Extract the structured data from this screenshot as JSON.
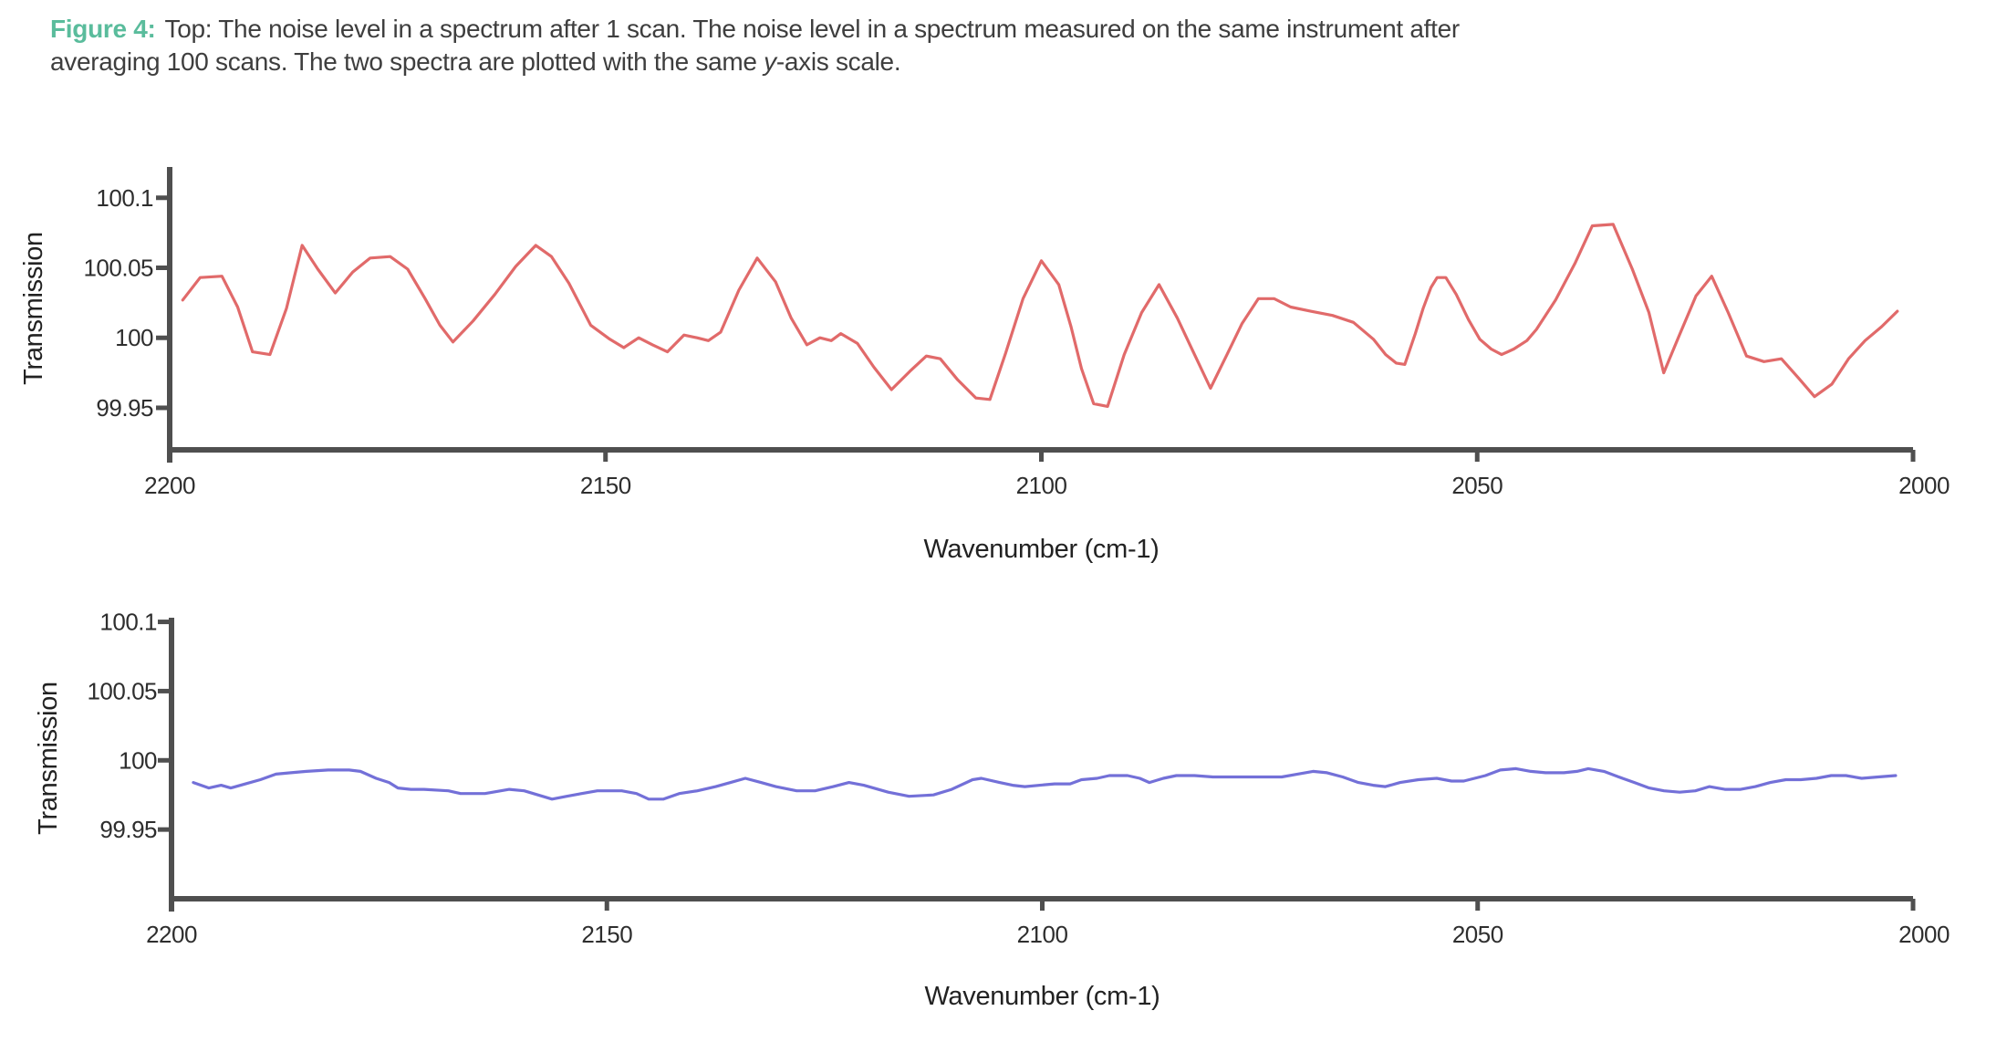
{
  "caption": {
    "label": "Figure 4:",
    "line1": "Top: The noise level in a spectrum after 1 scan. The noise level in a spectrum measured on the same instrument after",
    "line2_before_italic": "averaging 100 scans. The two spectra are plotted with the same ",
    "italic_word": "y",
    "line2_after_italic": "-axis scale."
  },
  "colors": {
    "accent_teal": "#5abc9c",
    "caption_text": "#3e3e3e",
    "axis": "#4f4f4f",
    "tick_text": "#2e2e2e",
    "line_1scan": "#e16a6a",
    "line_100scans": "#7370d8",
    "background": "#ffffff"
  },
  "chart_data": [
    {
      "type": "line",
      "position": "top",
      "title": "",
      "xlabel": "Wavenumber (cm-1)",
      "ylabel": "Transmission",
      "xlim": [
        2200,
        2000
      ],
      "ylim": [
        99.92,
        100.122
      ],
      "x_ticks": [
        2200,
        2150,
        2100,
        2050,
        2000
      ],
      "x_tick_labels": [
        "2200",
        "2150",
        "2100",
        "2050",
        "2000"
      ],
      "y_ticks": [
        99.95,
        100,
        100.05,
        100.1
      ],
      "y_tick_labels": [
        "99.95",
        "100",
        "100.05",
        "100.1"
      ],
      "grid": false,
      "legend": "none",
      "series": [
        {
          "name": "1 scan",
          "color": "#e16a6a",
          "points": [
            [
              2198.5,
              100.027
            ],
            [
              2196.5,
              100.043
            ],
            [
              2194.0,
              100.044
            ],
            [
              2192.2,
              100.022
            ],
            [
              2190.5,
              99.99
            ],
            [
              2188.5,
              99.988
            ],
            [
              2186.6,
              100.021
            ],
            [
              2184.8,
              100.066
            ],
            [
              2183.0,
              100.049
            ],
            [
              2181.0,
              100.032
            ],
            [
              2179.0,
              100.047
            ],
            [
              2177.0,
              100.057
            ],
            [
              2174.7,
              100.058
            ],
            [
              2172.7,
              100.049
            ],
            [
              2170.7,
              100.028
            ],
            [
              2169.0,
              100.009
            ],
            [
              2167.5,
              99.997
            ],
            [
              2165.2,
              100.012
            ],
            [
              2162.7,
              100.031
            ],
            [
              2160.3,
              100.051
            ],
            [
              2158.0,
              100.066
            ],
            [
              2156.2,
              100.058
            ],
            [
              2154.2,
              100.039
            ],
            [
              2151.7,
              100.009
            ],
            [
              2149.5,
              99.999
            ],
            [
              2147.9,
              99.993
            ],
            [
              2146.2,
              100.0
            ],
            [
              2144.6,
              99.995
            ],
            [
              2142.9,
              99.99
            ],
            [
              2141.0,
              100.002
            ],
            [
              2139.5,
              100.0
            ],
            [
              2138.2,
              99.998
            ],
            [
              2136.8,
              100.004
            ],
            [
              2134.7,
              100.034
            ],
            [
              2132.6,
              100.057
            ],
            [
              2130.5,
              100.04
            ],
            [
              2128.7,
              100.014
            ],
            [
              2126.9,
              99.995
            ],
            [
              2125.4,
              100.0
            ],
            [
              2124.1,
              99.998
            ],
            [
              2123.0,
              100.003
            ],
            [
              2121.1,
              99.996
            ],
            [
              2119.2,
              99.979
            ],
            [
              2117.2,
              99.963
            ],
            [
              2115.1,
              99.976
            ],
            [
              2113.2,
              99.987
            ],
            [
              2111.6,
              99.985
            ],
            [
              2109.6,
              99.97
            ],
            [
              2107.5,
              99.957
            ],
            [
              2105.9,
              99.956
            ],
            [
              2104.1,
              99.989
            ],
            [
              2102.1,
              100.028
            ],
            [
              2100.0,
              100.055
            ],
            [
              2098.0,
              100.038
            ],
            [
              2096.6,
              100.008
            ],
            [
              2095.4,
              99.978
            ],
            [
              2094.0,
              99.953
            ],
            [
              2092.4,
              99.951
            ],
            [
              2090.5,
              99.988
            ],
            [
              2088.5,
              100.018
            ],
            [
              2086.5,
              100.038
            ],
            [
              2084.4,
              100.014
            ],
            [
              2082.5,
              99.989
            ],
            [
              2080.6,
              99.964
            ],
            [
              2078.7,
              99.988
            ],
            [
              2077.0,
              100.01
            ],
            [
              2075.1,
              100.028
            ],
            [
              2073.3,
              100.028
            ],
            [
              2071.4,
              100.022
            ],
            [
              2069.1,
              100.019
            ],
            [
              2066.6,
              100.016
            ],
            [
              2064.2,
              100.011
            ],
            [
              2061.9,
              99.999
            ],
            [
              2060.5,
              99.988
            ],
            [
              2059.3,
              99.982
            ],
            [
              2058.3,
              99.981
            ],
            [
              2057.1,
              100.003
            ],
            [
              2056.2,
              100.021
            ],
            [
              2055.3,
              100.036
            ],
            [
              2054.6,
              100.043
            ],
            [
              2053.6,
              100.043
            ],
            [
              2052.4,
              100.031
            ],
            [
              2051.0,
              100.013
            ],
            [
              2049.7,
              99.999
            ],
            [
              2048.4,
              99.992
            ],
            [
              2047.2,
              99.988
            ],
            [
              2045.8,
              99.992
            ],
            [
              2044.3,
              99.998
            ],
            [
              2043.2,
              100.006
            ],
            [
              2041.0,
              100.027
            ],
            [
              2038.8,
              100.053
            ],
            [
              2036.8,
              100.08
            ],
            [
              2034.4,
              100.081
            ],
            [
              2032.2,
              100.049
            ],
            [
              2030.3,
              100.018
            ],
            [
              2028.6,
              99.975
            ],
            [
              2026.8,
              100.002
            ],
            [
              2024.9,
              100.03
            ],
            [
              2023.1,
              100.044
            ],
            [
              2021.2,
              100.018
            ],
            [
              2019.1,
              99.987
            ],
            [
              2017.1,
              99.983
            ],
            [
              2015.1,
              99.985
            ],
            [
              2013.1,
              99.971
            ],
            [
              2011.3,
              99.958
            ],
            [
              2009.3,
              99.967
            ],
            [
              2007.4,
              99.985
            ],
            [
              2005.5,
              99.998
            ],
            [
              2003.6,
              100.008
            ],
            [
              2001.8,
              100.019
            ]
          ]
        }
      ]
    },
    {
      "type": "line",
      "position": "bottom",
      "title": "",
      "xlabel": "Wavenumber (cm-1)",
      "ylabel": "Transmission",
      "xlim": [
        2200,
        2000
      ],
      "ylim": [
        99.9,
        100.103
      ],
      "x_ticks": [
        2200,
        2150,
        2100,
        2050,
        2000
      ],
      "x_tick_labels": [
        "2200",
        "2150",
        "2100",
        "2050",
        "2000"
      ],
      "y_ticks": [
        99.95,
        100,
        100.05,
        100.1
      ],
      "y_tick_labels": [
        "99.95",
        "100",
        "100.05",
        "100.1"
      ],
      "grid": false,
      "legend": "none",
      "series": [
        {
          "name": "100 scans",
          "color": "#7370d8",
          "points": [
            [
              2197.5,
              99.984
            ],
            [
              2195.7,
              99.98
            ],
            [
              2194.3,
              99.982
            ],
            [
              2193.2,
              99.98
            ],
            [
              2191.5,
              99.983
            ],
            [
              2189.8,
              99.986
            ],
            [
              2188.0,
              99.99
            ],
            [
              2186.3,
              99.991
            ],
            [
              2184.5,
              99.992
            ],
            [
              2182.0,
              99.993
            ],
            [
              2179.6,
              99.993
            ],
            [
              2178.3,
              99.992
            ],
            [
              2176.5,
              99.987
            ],
            [
              2175.0,
              99.984
            ],
            [
              2174.0,
              99.98
            ],
            [
              2172.5,
              99.979
            ],
            [
              2171.0,
              99.979
            ],
            [
              2168.2,
              99.978
            ],
            [
              2166.8,
              99.976
            ],
            [
              2164.0,
              99.976
            ],
            [
              2161.2,
              99.979
            ],
            [
              2159.5,
              99.978
            ],
            [
              2156.3,
              99.972
            ],
            [
              2154.6,
              99.974
            ],
            [
              2152.9,
              99.976
            ],
            [
              2151.1,
              99.978
            ],
            [
              2148.3,
              99.978
            ],
            [
              2146.6,
              99.976
            ],
            [
              2145.2,
              99.972
            ],
            [
              2143.5,
              99.972
            ],
            [
              2141.7,
              99.976
            ],
            [
              2139.6,
              99.978
            ],
            [
              2137.5,
              99.981
            ],
            [
              2135.8,
              99.984
            ],
            [
              2134.1,
              99.987
            ],
            [
              2132.3,
              99.984
            ],
            [
              2130.6,
              99.981
            ],
            [
              2128.2,
              99.978
            ],
            [
              2126.1,
              99.978
            ],
            [
              2124.0,
              99.981
            ],
            [
              2122.2,
              99.984
            ],
            [
              2120.5,
              99.982
            ],
            [
              2117.7,
              99.977
            ],
            [
              2115.3,
              99.974
            ],
            [
              2112.5,
              99.975
            ],
            [
              2110.4,
              99.979
            ],
            [
              2108.0,
              99.986
            ],
            [
              2107.0,
              99.987
            ],
            [
              2104.9,
              99.984
            ],
            [
              2103.4,
              99.982
            ],
            [
              2102.0,
              99.981
            ],
            [
              2098.6,
              99.983
            ],
            [
              2096.8,
              99.983
            ],
            [
              2095.5,
              99.986
            ],
            [
              2093.7,
              99.987
            ],
            [
              2092.3,
              99.989
            ],
            [
              2090.2,
              99.989
            ],
            [
              2088.8,
              99.987
            ],
            [
              2087.7,
              99.984
            ],
            [
              2086.1,
              99.987
            ],
            [
              2084.6,
              99.989
            ],
            [
              2082.5,
              99.989
            ],
            [
              2080.4,
              99.988
            ],
            [
              2076.0,
              99.988
            ],
            [
              2072.5,
              99.988
            ],
            [
              2070.7,
              99.99
            ],
            [
              2068.9,
              99.992
            ],
            [
              2067.3,
              99.991
            ],
            [
              2065.5,
              99.988
            ],
            [
              2063.7,
              99.984
            ],
            [
              2062.0,
              99.982
            ],
            [
              2060.6,
              99.981
            ],
            [
              2058.9,
              99.984
            ],
            [
              2056.8,
              99.986
            ],
            [
              2054.7,
              99.987
            ],
            [
              2053.0,
              99.985
            ],
            [
              2051.6,
              99.985
            ],
            [
              2049.1,
              99.989
            ],
            [
              2047.4,
              99.993
            ],
            [
              2045.6,
              99.994
            ],
            [
              2043.9,
              99.992
            ],
            [
              2042.2,
              99.991
            ],
            [
              2040.1,
              99.991
            ],
            [
              2038.6,
              99.992
            ],
            [
              2037.3,
              99.994
            ],
            [
              2035.5,
              99.992
            ],
            [
              2033.8,
              99.988
            ],
            [
              2032.0,
              99.984
            ],
            [
              2030.3,
              99.98
            ],
            [
              2028.6,
              99.978
            ],
            [
              2026.8,
              99.977
            ],
            [
              2025.0,
              99.978
            ],
            [
              2023.4,
              99.981
            ],
            [
              2021.6,
              99.979
            ],
            [
              2019.8,
              99.979
            ],
            [
              2018.1,
              99.981
            ],
            [
              2016.4,
              99.984
            ],
            [
              2014.6,
              99.986
            ],
            [
              2012.9,
              99.986
            ],
            [
              2011.1,
              99.987
            ],
            [
              2009.4,
              99.989
            ],
            [
              2007.7,
              99.989
            ],
            [
              2005.9,
              99.987
            ],
            [
              2004.0,
              99.988
            ],
            [
              2002.0,
              99.989
            ]
          ]
        }
      ]
    }
  ]
}
